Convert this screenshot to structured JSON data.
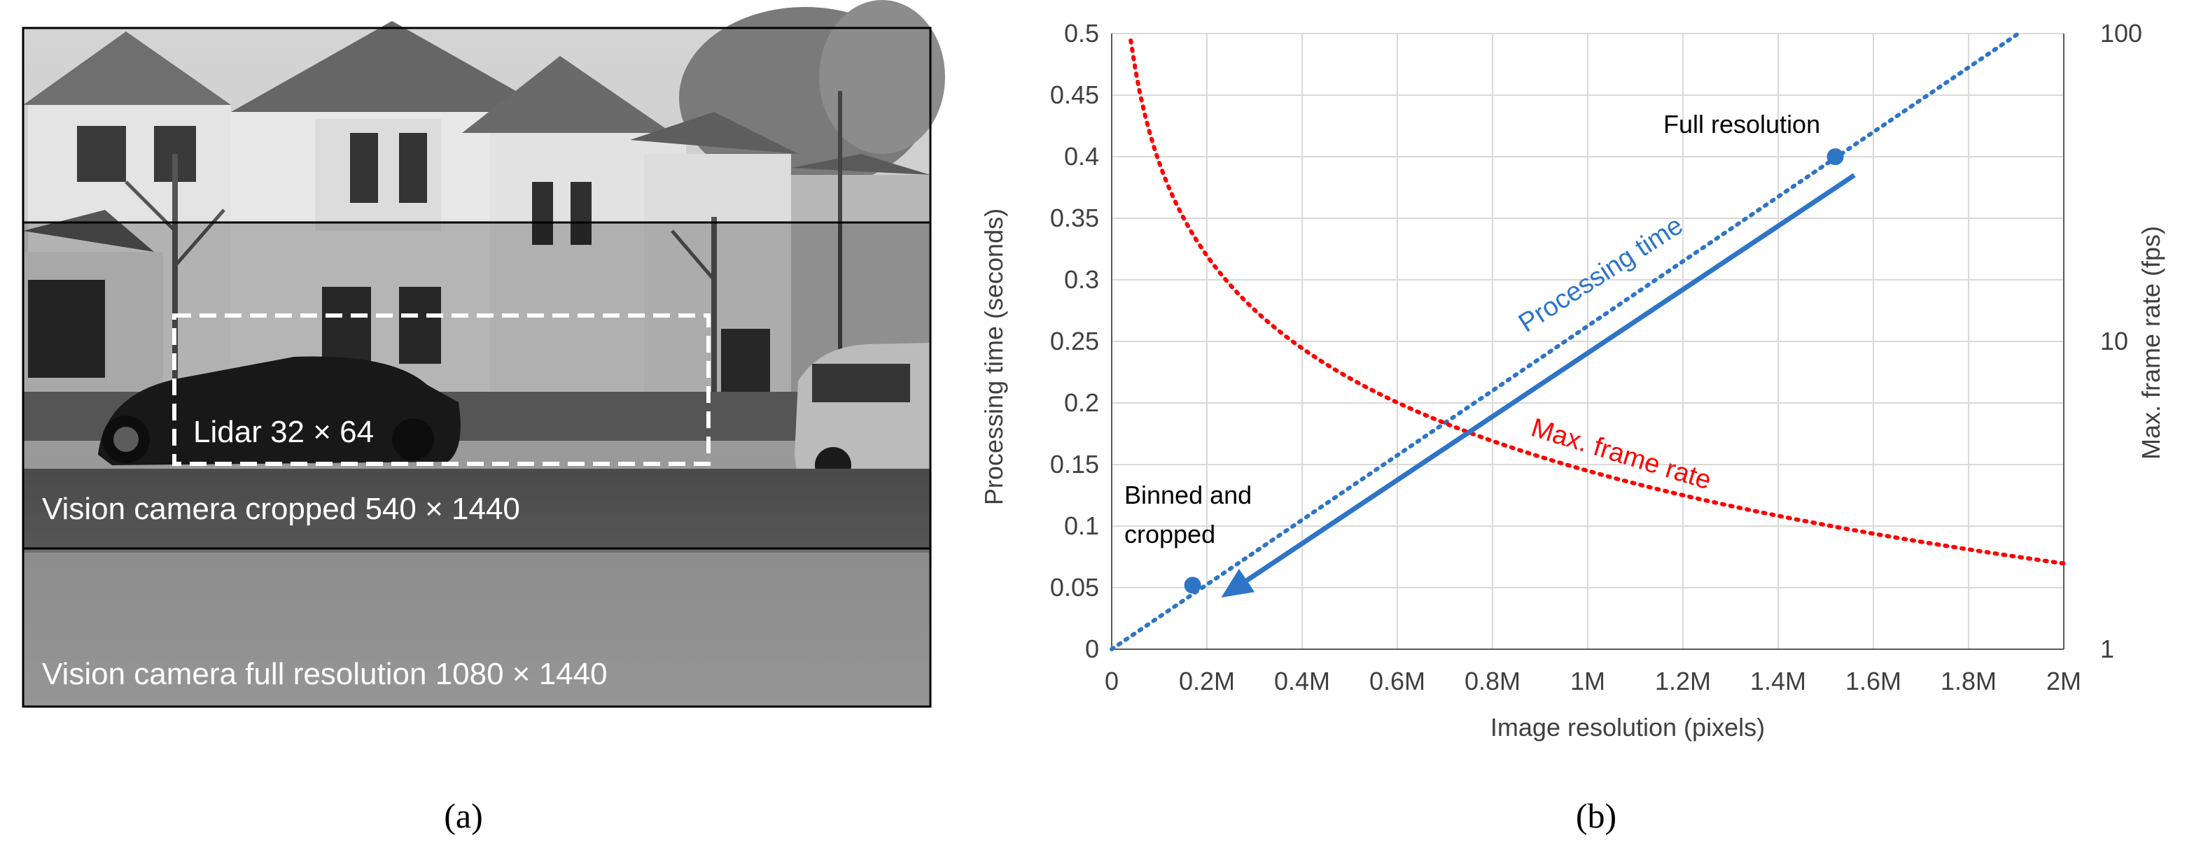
{
  "panel_a": {
    "label": "(a)",
    "boxes": {
      "full": "Vision camera full resolution 1080 × 1440",
      "cropped": "Vision camera cropped 540 × 1440",
      "lidar": "Lidar 32 × 64"
    }
  },
  "panel_b": {
    "label": "(b)"
  },
  "chart_data": {
    "type": "line",
    "xlabel": "Image resolution (pixels)",
    "ylabel": "Processing time (seconds)",
    "y2label": "Max. frame rate (fps)",
    "xlim": [
      0,
      2000000
    ],
    "ylim": [
      0,
      0.5
    ],
    "y2lim": [
      1,
      100
    ],
    "y2scale": "log",
    "grid": true,
    "x_ticks": [
      0,
      200000,
      400000,
      600000,
      800000,
      1000000,
      1200000,
      1400000,
      1600000,
      1800000,
      2000000
    ],
    "x_tick_labels": [
      "0",
      "0.2M",
      "0.4M",
      "0.6M",
      "0.8M",
      "1M",
      "1.2M",
      "1.4M",
      "1.6M",
      "1.8M",
      "2M"
    ],
    "y_ticks": [
      0,
      0.05,
      0.1,
      0.15,
      0.2,
      0.25,
      0.3,
      0.35,
      0.4,
      0.45,
      0.5
    ],
    "y_tick_labels": [
      "0",
      "0.05",
      "0.1",
      "0.15",
      "0.2",
      "0.25",
      "0.3",
      "0.35",
      "0.4",
      "0.45",
      "0.5"
    ],
    "y2_ticks": [
      1,
      10,
      100
    ],
    "y2_tick_labels": [
      "1",
      "10",
      "100"
    ],
    "series": [
      {
        "name": "Processing time",
        "axis": "left",
        "style": "dotted",
        "color": "#2E75C6",
        "x": [
          0,
          2000000
        ],
        "y": [
          0,
          0.525
        ]
      },
      {
        "name": "Max. frame rate",
        "axis": "right",
        "style": "dotted",
        "color": "#FF0000",
        "x": [
          40000,
          100000,
          200000,
          400000,
          600000,
          800000,
          1000000,
          1400000,
          1800000,
          2000000
        ],
        "y": [
          95,
          38,
          19,
          9.5,
          6.3,
          4.8,
          3.8,
          2.7,
          2.1,
          1.9
        ]
      }
    ],
    "points": [
      {
        "label": "Binned and cropped",
        "x": 170000,
        "y": 0.052
      },
      {
        "label": "Full resolution",
        "x": 1520000,
        "y": 0.4
      }
    ],
    "arrow": {
      "from": [
        1560000,
        0.385
      ],
      "to": [
        230000,
        0.042
      ],
      "color": "#2E75C6"
    },
    "annotations": {
      "processing_time": "Processing time",
      "max_frame_rate": "Max. frame rate",
      "binned_line1": "Binned and",
      "binned_line2": "cropped",
      "full_resolution": "Full resolution"
    }
  }
}
